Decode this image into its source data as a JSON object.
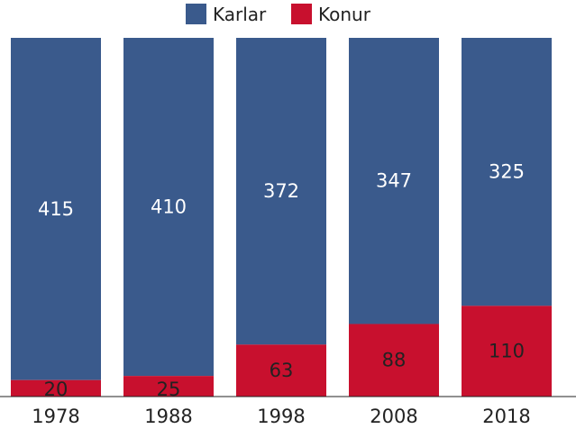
{
  "chart_data": {
    "type": "bar",
    "stacked": true,
    "categories": [
      "1978",
      "1988",
      "1998",
      "2008",
      "2018"
    ],
    "series": [
      {
        "name": "Karlar",
        "color": "#3a5a8c",
        "label_color": "#ffffff",
        "values": [
          415,
          410,
          372,
          347,
          325
        ]
      },
      {
        "name": "Konur",
        "color": "#c8102e",
        "label_color": "#222222",
        "values": [
          20,
          25,
          63,
          88,
          110
        ]
      }
    ],
    "title": "",
    "xlabel": "",
    "ylabel": "",
    "ylim": [
      0,
      435
    ],
    "grid": false,
    "legend_position": "top-center"
  }
}
